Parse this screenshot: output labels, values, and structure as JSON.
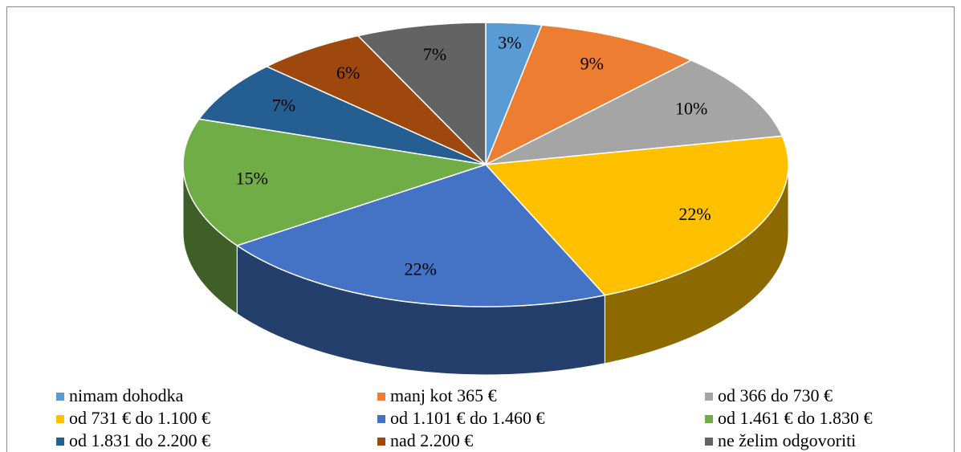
{
  "chart_data": {
    "type": "pie",
    "categories": [
      "nimam dohodka",
      "manj kot 365 €",
      "od 366 do 730 €",
      "od 731 € do 1.100 €",
      "od 1.101 € do 1.460 €",
      "od 1.461 € do 1.830 €",
      "od 1.831 do 2.200 €",
      "nad 2.200 €",
      "ne želim odgovoriti"
    ],
    "values": [
      3,
      9,
      10,
      22,
      22,
      15,
      7,
      6,
      7
    ],
    "value_labels": [
      "3%",
      "9%",
      "10%",
      "22%",
      "22%",
      "15%",
      "7%",
      "6%",
      "7%"
    ],
    "colors": [
      "#5b9bd5",
      "#ed7d31",
      "#a5a5a5",
      "#ffc000",
      "#4472c4",
      "#70ad47",
      "#255e91",
      "#9e480e",
      "#636363"
    ],
    "legend": "bottom"
  }
}
